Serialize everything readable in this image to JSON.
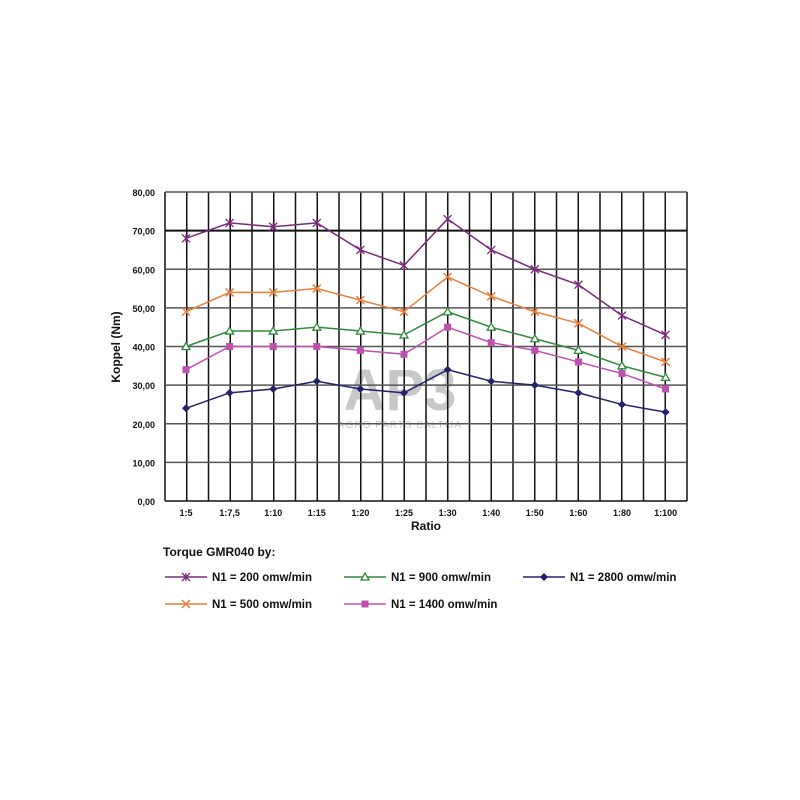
{
  "chart_data": {
    "type": "line",
    "title": "Torque GMR040 by:",
    "xlabel": "Ratio",
    "ylabel": "Koppel (Nm)",
    "ylim": [
      0,
      80
    ],
    "yticks": [
      "0,00",
      "10,00",
      "20,00",
      "30,00",
      "40,00",
      "50,00",
      "60,00",
      "70,00",
      "80,00"
    ],
    "grid": true,
    "legend_placement": "bottom",
    "categories": [
      "1:5",
      "1:7,5",
      "1:10",
      "1:15",
      "1:20",
      "1:25",
      "1:30",
      "1:40",
      "1:50",
      "1:60",
      "1:80",
      "1:100"
    ],
    "series": [
      {
        "name": "N1 = 200 omw/min",
        "color": "#7a2a7a",
        "marker": "asterisk",
        "values": [
          68,
          72,
          71,
          72,
          65,
          61,
          73,
          65,
          60,
          56,
          48,
          43
        ]
      },
      {
        "name": "N1 = 500 omw/min",
        "color": "#e8803a",
        "marker": "x",
        "values": [
          49,
          54,
          54,
          55,
          52,
          49,
          58,
          53,
          49,
          46,
          40,
          36
        ]
      },
      {
        "name": "N1 = 900 omw/min",
        "color": "#2e8b3a",
        "marker": "triangle",
        "values": [
          40,
          44,
          44,
          45,
          44,
          43,
          49,
          45,
          42,
          39,
          35,
          32
        ]
      },
      {
        "name": "N1 = 1400 omw/min",
        "color": "#c050b0",
        "marker": "square",
        "values": [
          34,
          40,
          40,
          40,
          39,
          38,
          45,
          41,
          39,
          36,
          33,
          29
        ]
      },
      {
        "name": "N1 = 2800 omw/min",
        "color": "#22236a",
        "marker": "diamond",
        "values": [
          24,
          28,
          29,
          31,
          29,
          28,
          34,
          31,
          30,
          28,
          25,
          23
        ]
      }
    ]
  },
  "watermark": {
    "logo": "AP3",
    "subtitle": "AGRO PARTS BALTIJA"
  }
}
